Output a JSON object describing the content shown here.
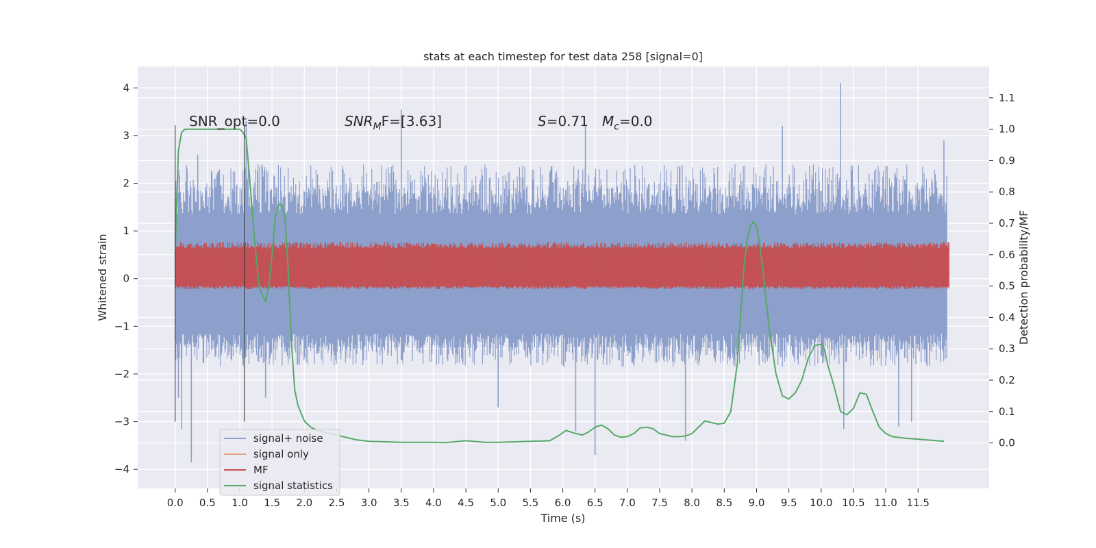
{
  "chart_data": {
    "type": "line",
    "title": "stats at each timestep for test data 258 [signal=0]",
    "xlabel": "Time (s)",
    "ylabel": "Whitened strain",
    "y2label": "Detection probability/MF",
    "xlim": [
      -0.58,
      12.6
    ],
    "ylim": [
      -4.4,
      4.45
    ],
    "y2lim": [
      -0.145,
      1.2
    ],
    "xticks": [
      0.0,
      0.5,
      1.0,
      1.5,
      2.0,
      2.5,
      3.0,
      3.5,
      4.0,
      4.5,
      5.0,
      5.5,
      6.0,
      6.5,
      7.0,
      7.5,
      8.0,
      8.5,
      9.0,
      9.5,
      10.0,
      10.5,
      11.0,
      11.5
    ],
    "xtick_labels": [
      "0.0",
      "0.5",
      "1.0",
      "1.5",
      "2.0",
      "2.5",
      "3.0",
      "3.5",
      "4.0",
      "4.5",
      "5.0",
      "5.5",
      "6.0",
      "6.5",
      "7.0",
      "7.5",
      "8.0",
      "8.5",
      "9.0",
      "9.5",
      "10.0",
      "10.5",
      "11.0",
      "11.5"
    ],
    "yticks": [
      4,
      3,
      2,
      1,
      0,
      -1,
      -2,
      -3,
      -4
    ],
    "ytick_labels": [
      "4",
      "3",
      "2",
      "1",
      "0",
      "−1",
      "−2",
      "−3",
      "−4"
    ],
    "y2ticks": [
      1.1,
      1.0,
      0.9,
      0.8,
      0.7,
      0.6,
      0.5,
      0.4,
      0.3,
      0.2,
      0.1,
      0.0
    ],
    "y2tick_labels": [
      "1.1",
      "1.0",
      "0.9",
      "0.8",
      "0.7",
      "0.6",
      "0.5",
      "0.4",
      "0.3",
      "0.2",
      "0.1",
      "0.0"
    ],
    "grid": true,
    "legend_position": "lower-left",
    "annotations": {
      "snr_opt": "SNR_opt=0.0",
      "snr_mf_sym": "SNR",
      "snr_mf_sub": "M",
      "snr_mf_tail": "F=[3.63]",
      "s_sym": "S",
      "s_val": "=0.71",
      "mc_sym": "M",
      "mc_sub": "c",
      "mc_val": "=0.0"
    },
    "vertical_lines": [
      0.0,
      1.07
    ],
    "vertical_line_range": [
      -3.0,
      3.22
    ],
    "series": [
      {
        "name": "signal+ noise",
        "color": "#8da0cb",
        "axis": "left",
        "band_x": [
          0.0,
          11.95
        ],
        "band_inner": [
          -1.15,
          1.35
        ],
        "band_outer": [
          -1.85,
          2.4
        ],
        "spikes": [
          [
            0.05,
            -2.5
          ],
          [
            0.1,
            -3.15
          ],
          [
            0.25,
            -3.85
          ],
          [
            0.35,
            2.6
          ],
          [
            1.1,
            3.3
          ],
          [
            1.4,
            -2.5
          ],
          [
            3.5,
            3.55
          ],
          [
            5.0,
            -2.7
          ],
          [
            6.2,
            -3.2
          ],
          [
            6.35,
            3.2
          ],
          [
            6.5,
            -3.7
          ],
          [
            7.9,
            -3.4
          ],
          [
            9.4,
            3.2
          ],
          [
            10.3,
            4.1
          ],
          [
            10.35,
            -3.15
          ],
          [
            11.2,
            -3.1
          ],
          [
            11.4,
            -3.0
          ],
          [
            11.9,
            2.9
          ]
        ]
      },
      {
        "name": "signal only",
        "color": "#e8a088",
        "axis": "left",
        "x": [
          0.0,
          11.95
        ],
        "y": [
          0.0,
          0.0
        ]
      },
      {
        "name": "MF",
        "color": "#c44e52",
        "axis": "right",
        "band_x": [
          0.0,
          11.98
        ],
        "band_low": 0.5,
        "band_high": 0.62,
        "band_range": [
          0.49,
          0.64
        ]
      },
      {
        "name": "signal statistics",
        "color": "#55a868",
        "axis": "right",
        "x": [
          0.0,
          0.05,
          0.1,
          0.15,
          0.2,
          0.3,
          0.5,
          0.8,
          0.95,
          1.0,
          1.05,
          1.1,
          1.15,
          1.2,
          1.25,
          1.3,
          1.35,
          1.4,
          1.45,
          1.5,
          1.55,
          1.6,
          1.65,
          1.7,
          1.75,
          1.8,
          1.85,
          1.9,
          2.0,
          2.1,
          2.2,
          2.4,
          2.6,
          2.8,
          3.0,
          3.5,
          4.0,
          4.2,
          4.5,
          4.8,
          5.0,
          5.5,
          5.8,
          5.95,
          6.05,
          6.2,
          6.3,
          6.4,
          6.5,
          6.6,
          6.7,
          6.8,
          6.9,
          7.0,
          7.1,
          7.2,
          7.3,
          7.4,
          7.5,
          7.6,
          7.7,
          7.8,
          7.9,
          8.0,
          8.1,
          8.2,
          8.3,
          8.4,
          8.5,
          8.6,
          8.7,
          8.75,
          8.8,
          8.85,
          8.9,
          8.95,
          9.0,
          9.05,
          9.1,
          9.15,
          9.2,
          9.3,
          9.4,
          9.5,
          9.6,
          9.7,
          9.8,
          9.9,
          10.0,
          10.05,
          10.1,
          10.2,
          10.3,
          10.4,
          10.5,
          10.6,
          10.7,
          10.8,
          10.9,
          11.0,
          11.1,
          11.3,
          11.5,
          11.9
        ],
        "y": [
          0.6,
          0.93,
          0.99,
          1.0,
          1.0,
          1.0,
          1.0,
          1.0,
          1.0,
          1.0,
          0.99,
          0.97,
          0.85,
          0.72,
          0.6,
          0.5,
          0.47,
          0.45,
          0.5,
          0.6,
          0.72,
          0.76,
          0.76,
          0.72,
          0.55,
          0.32,
          0.17,
          0.12,
          0.07,
          0.05,
          0.04,
          0.03,
          0.02,
          0.01,
          0.005,
          0.002,
          0.002,
          0.001,
          0.007,
          0.002,
          0.002,
          0.005,
          0.007,
          0.025,
          0.04,
          0.03,
          0.025,
          0.035,
          0.05,
          0.057,
          0.045,
          0.025,
          0.018,
          0.02,
          0.03,
          0.048,
          0.05,
          0.045,
          0.03,
          0.025,
          0.02,
          0.02,
          0.022,
          0.03,
          0.05,
          0.07,
          0.065,
          0.06,
          0.063,
          0.1,
          0.25,
          0.4,
          0.55,
          0.64,
          0.69,
          0.705,
          0.69,
          0.63,
          0.55,
          0.45,
          0.36,
          0.22,
          0.15,
          0.14,
          0.16,
          0.2,
          0.27,
          0.31,
          0.315,
          0.3,
          0.25,
          0.18,
          0.1,
          0.09,
          0.11,
          0.16,
          0.155,
          0.1,
          0.05,
          0.03,
          0.02,
          0.015,
          0.012,
          0.005
        ]
      }
    ]
  }
}
